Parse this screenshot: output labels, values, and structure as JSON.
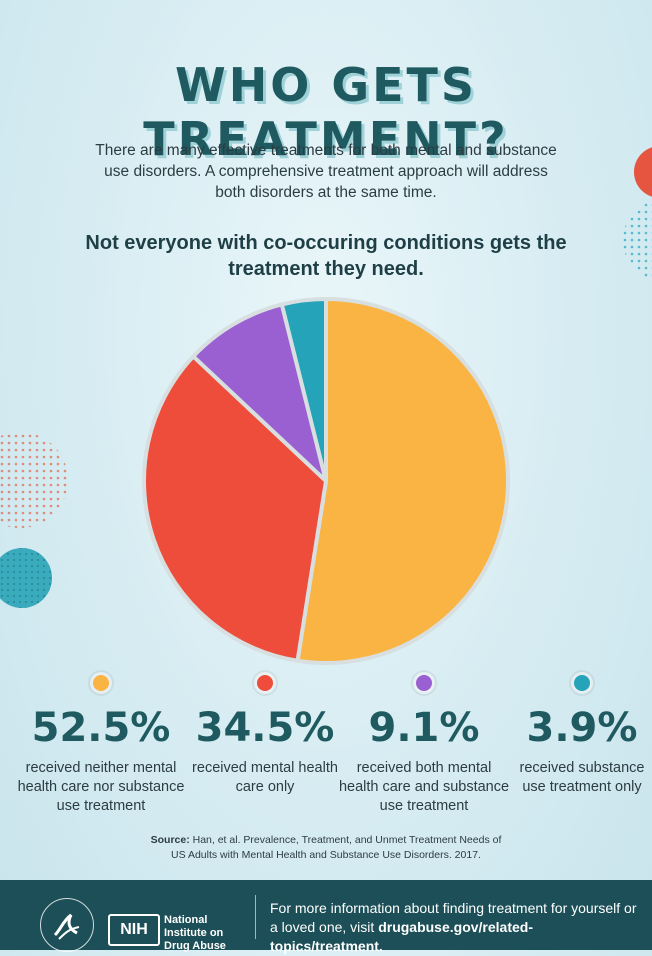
{
  "title": "WHO GETS TREATMENT?",
  "intro": "There are many effective treatments for both mental and substance use disorders. A comprehensive treatment approach will address both disorders at the same time.",
  "subhead": "Not everyone with co-occuring conditions gets the treatment they need.",
  "chart_data": {
    "type": "pie",
    "slices": [
      {
        "label": "received neither mental health care nor substance use treatment",
        "value": 52.5,
        "display": "52.5%",
        "color": "#f9b444"
      },
      {
        "label": "received mental health care only",
        "value": 34.5,
        "display": "34.5%",
        "color": "#ee4d3b"
      },
      {
        "label": "received both mental health care and substance use treatment",
        "value": 9.1,
        "display": "9.1%",
        "color": "#9a5fd0"
      },
      {
        "label": "received substance use treatment only",
        "value": 3.9,
        "display": "3.9%",
        "color": "#25a3b8"
      }
    ]
  },
  "source": {
    "prefix": "Source:",
    "text": "Han, et al. Prevalence, Treatment, and Unmet Treatment Needs of US Adults with Mental Health and Substance Use Disorders. 2017."
  },
  "footer": {
    "nih_logo": "NIH",
    "nih_name": "National Institute on Drug Abuse",
    "more_text": "For more information about finding treatment for yourself or a loved one, visit",
    "more_link": "drugabuse.gov/related-topics/treatment."
  },
  "colors": {
    "title": "#1f5a60",
    "footer_bg": "#1c4f57"
  }
}
